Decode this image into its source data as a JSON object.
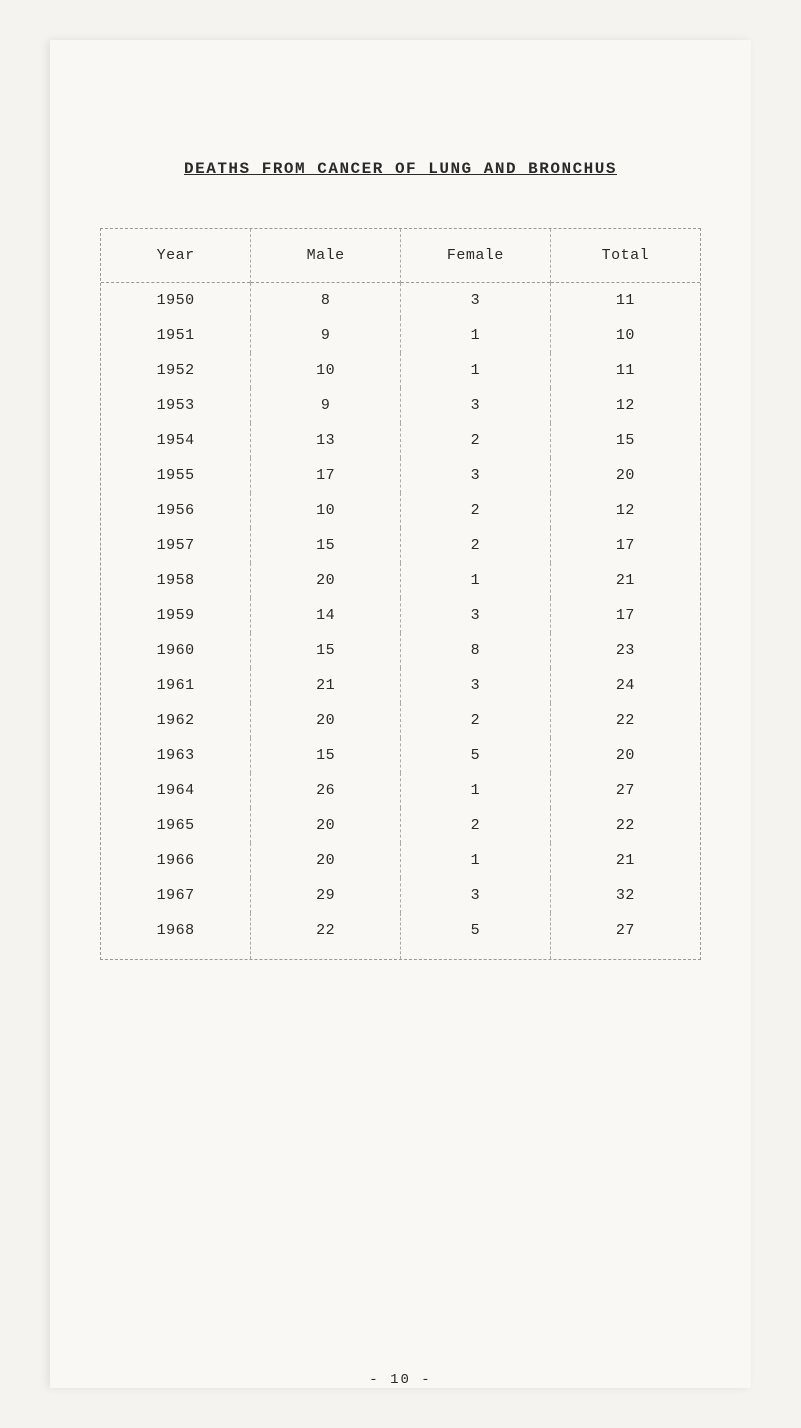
{
  "title": "DEATHS FROM CANCER OF LUNG AND BRONCHUS",
  "columns": [
    "Year",
    "Male",
    "Female",
    "Total"
  ],
  "rows": [
    [
      "1950",
      "8",
      "3",
      "11"
    ],
    [
      "1951",
      "9",
      "1",
      "10"
    ],
    [
      "1952",
      "10",
      "1",
      "11"
    ],
    [
      "1953",
      "9",
      "3",
      "12"
    ],
    [
      "1954",
      "13",
      "2",
      "15"
    ],
    [
      "1955",
      "17",
      "3",
      "20"
    ],
    [
      "1956",
      "10",
      "2",
      "12"
    ],
    [
      "1957",
      "15",
      "2",
      "17"
    ],
    [
      "1958",
      "20",
      "1",
      "21"
    ],
    [
      "1959",
      "14",
      "3",
      "17"
    ],
    [
      "1960",
      "15",
      "8",
      "23"
    ],
    [
      "1961",
      "21",
      "3",
      "24"
    ],
    [
      "1962",
      "20",
      "2",
      "22"
    ],
    [
      "1963",
      "15",
      "5",
      "20"
    ],
    [
      "1964",
      "26",
      "1",
      "27"
    ],
    [
      "1965",
      "20",
      "2",
      "22"
    ],
    [
      "1966",
      "20",
      "1",
      "21"
    ],
    [
      "1967",
      "29",
      "3",
      "32"
    ],
    [
      "1968",
      "22",
      "5",
      "27"
    ]
  ],
  "page_number": "- 10 -",
  "styling": {
    "background_color": "#faf8f4",
    "text_color": "#2a2a2a",
    "border_style": "dashed",
    "border_color": "#999999",
    "font_family": "Courier New",
    "title_fontsize": 16,
    "cell_fontsize": 15,
    "column_widths": [
      "25%",
      "25%",
      "25%",
      "25%"
    ]
  }
}
